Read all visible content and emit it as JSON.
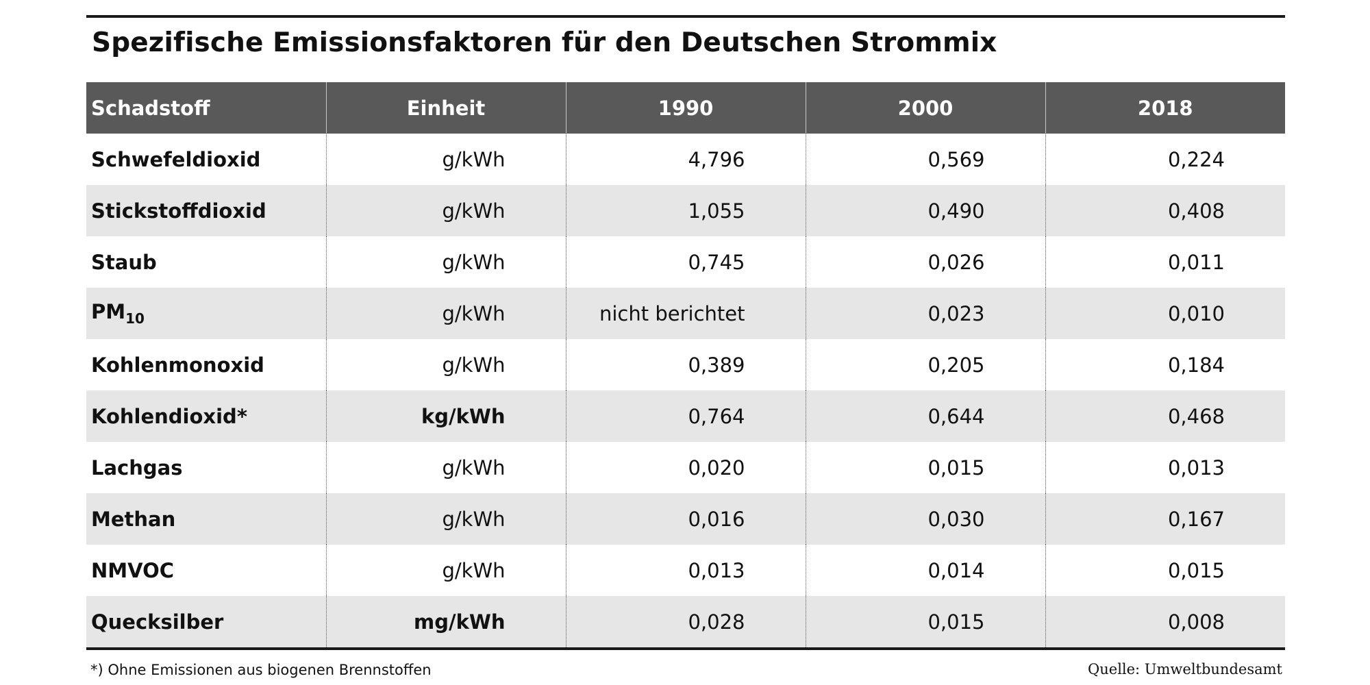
{
  "title": "Spezifische Emissionsfaktoren für den Deutschen Strommix",
  "table": {
    "headers": [
      "Schadstoff",
      "Einheit",
      "1990",
      "2000",
      "2018"
    ],
    "rows": [
      {
        "name": "Schwefeldioxid",
        "sub": "",
        "unit": "g/kWh",
        "unit_bold": false,
        "v1990": "4,796",
        "v2000": "0,569",
        "v2018": "0,224"
      },
      {
        "name": "Stickstoffdioxid",
        "sub": "",
        "unit": "g/kWh",
        "unit_bold": false,
        "v1990": "1,055",
        "v2000": "0,490",
        "v2018": "0,408"
      },
      {
        "name": "Staub",
        "sub": "",
        "unit": "g/kWh",
        "unit_bold": false,
        "v1990": "0,745",
        "v2000": "0,026",
        "v2018": "0,011"
      },
      {
        "name": "PM",
        "sub": "10",
        "unit": "g/kWh",
        "unit_bold": false,
        "v1990": "nicht berichtet",
        "v2000": "0,023",
        "v2018": "0,010"
      },
      {
        "name": "Kohlenmonoxid",
        "sub": "",
        "unit": "g/kWh",
        "unit_bold": false,
        "v1990": "0,389",
        "v2000": "0,205",
        "v2018": "0,184"
      },
      {
        "name": "Kohlendioxid*",
        "sub": "",
        "unit": "kg/kWh",
        "unit_bold": true,
        "v1990": "0,764",
        "v2000": "0,644",
        "v2018": "0,468"
      },
      {
        "name": "Lachgas",
        "sub": "",
        "unit": "g/kWh",
        "unit_bold": false,
        "v1990": "0,020",
        "v2000": "0,015",
        "v2018": "0,013"
      },
      {
        "name": "Methan",
        "sub": "",
        "unit": "g/kWh",
        "unit_bold": false,
        "v1990": "0,016",
        "v2000": "0,030",
        "v2018": "0,167"
      },
      {
        "name": "NMVOC",
        "sub": "",
        "unit": "g/kWh",
        "unit_bold": false,
        "v1990": "0,013",
        "v2000": "0,014",
        "v2018": "0,015"
      },
      {
        "name": "Quecksilber",
        "sub": "",
        "unit": "mg/kWh",
        "unit_bold": true,
        "v1990": "0,028",
        "v2000": "0,015",
        "v2018": "0,008"
      }
    ]
  },
  "footnote": "*) Ohne Emissionen aus biogenen Brennstoffen",
  "source": "Quelle: Umweltbundesamt"
}
